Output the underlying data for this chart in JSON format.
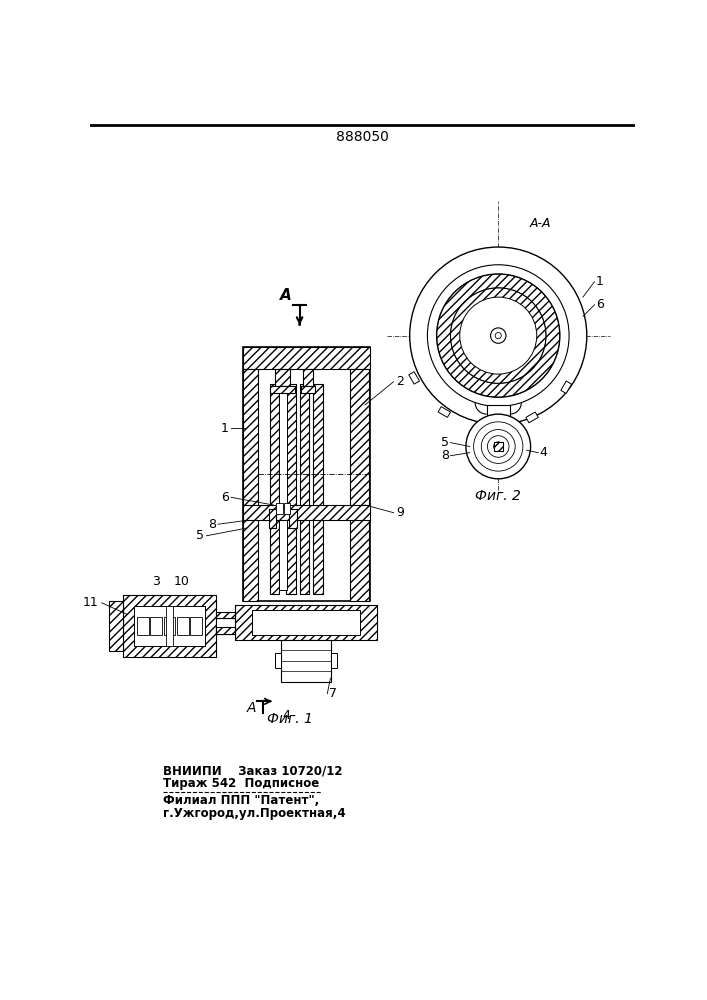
{
  "title": "888050",
  "fig1_label": "Фиг. 1",
  "fig2_label": "Фиг. 2",
  "aa_label": "A-A",
  "a_label": "A",
  "bottom_text1": "ВНИИПИ    Заказ 10720/12",
  "bottom_text2": "Тираж 542  Подписное",
  "bottom_text3": "Филиал ППП \"Патент\",",
  "bottom_text4": "г.Ужгород,ул.Проектная,4",
  "bg_color": "#ffffff",
  "line_color": "#000000"
}
